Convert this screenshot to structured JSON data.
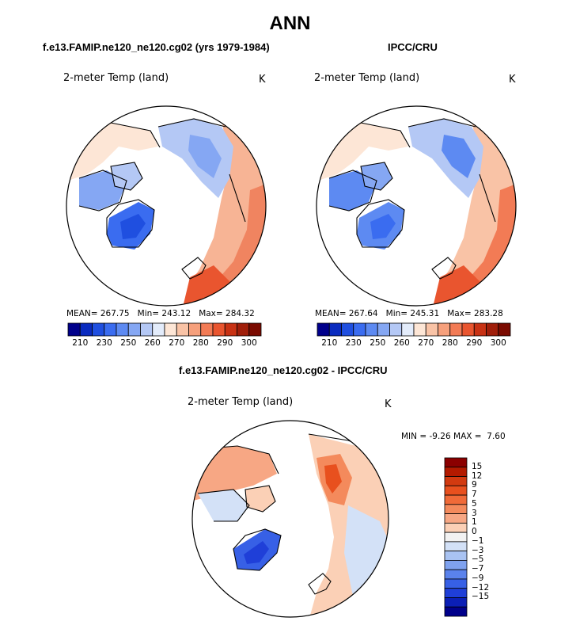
{
  "main_title": "ANN",
  "panels": [
    {
      "subtitle": "f.e13.FAMIP.ne120_ne120.cg02 (yrs 1979-1984)",
      "field_label": "2-meter Temp (land)",
      "units": "K",
      "stats": {
        "mean_label": "MEAN=",
        "mean": "267.75",
        "min_label": "Min=",
        "min": "243.12",
        "max_label": "Max=",
        "max": "284.32"
      },
      "colorbar_ticks": [
        "210",
        "230",
        "250",
        "260",
        "270",
        "280",
        "290",
        "300"
      ]
    },
    {
      "subtitle": "IPCC/CRU",
      "field_label": "2-meter Temp (land)",
      "units": "K",
      "stats": {
        "mean_label": "MEAN=",
        "mean": "267.64",
        "min_label": "Min=",
        "min": "245.31",
        "max_label": "Max=",
        "max": "283.28"
      },
      "colorbar_ticks": [
        "210",
        "230",
        "250",
        "260",
        "270",
        "280",
        "290",
        "300"
      ]
    }
  ],
  "diff_panel": {
    "subtitle": "f.e13.FAMIP.ne120_ne120.cg02 - IPCC/CRU",
    "field_label": "2-meter Temp (land)",
    "units": "K",
    "min_label": "MIN =",
    "min": "-9.26",
    "max_label": "MAX =",
    "max": "7.60",
    "colorbar_ticks": [
      "15",
      "12",
      "9",
      "7",
      "5",
      "3",
      "1",
      "0",
      "−1",
      "−3",
      "−5",
      "−7",
      "−9",
      "−12",
      "−15"
    ]
  },
  "colors": {
    "abs_scale": [
      "#00008b",
      "#0a2bbf",
      "#1f4fe0",
      "#3a6cf0",
      "#5d8af2",
      "#85a7f3",
      "#b4c8f5",
      "#e3ecfb",
      "#fde6d6",
      "#f9c3a6",
      "#f6a07c",
      "#f27b55",
      "#e9552f",
      "#c83214",
      "#a01e0a",
      "#7a0a00"
    ],
    "diff_scale": [
      "#8b0000",
      "#b31a00",
      "#d23a10",
      "#e8501e",
      "#f06a38",
      "#f48a5c",
      "#f7a784",
      "#fbd0b6",
      "#f2f2f2",
      "#d3e1f7",
      "#a9c3f2",
      "#7fa2ef",
      "#5a82ec",
      "#3760e6",
      "#1f3fd8",
      "#0b1fb6",
      "#00008b"
    ]
  }
}
